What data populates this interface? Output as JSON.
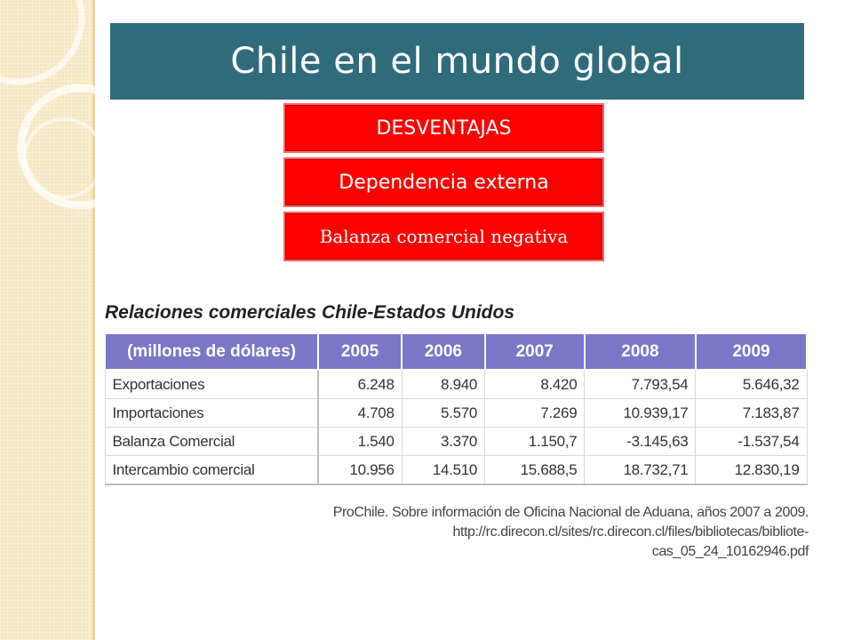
{
  "slide": {
    "title": "Chile en el mundo global",
    "boxes": [
      "DESVENTAJAS",
      "Dependencia externa",
      "Balanza comercial negativa"
    ]
  },
  "table": {
    "title": "Relaciones comerciales Chile-Estados Unidos",
    "headers": [
      "(millones de dólares)",
      "2005",
      "2006",
      "2007",
      "2008",
      "2009"
    ],
    "rows": [
      [
        "Exportaciones",
        "6.248",
        "8.940",
        "8.420",
        "7.793,54",
        "5.646,32"
      ],
      [
        "Importaciones",
        "4.708",
        "5.570",
        "7.269",
        "10.939,17",
        "7.183,87"
      ],
      [
        "Balanza Comercial",
        "1.540",
        "3.370",
        "1.150,7",
        "-3.145,63",
        "-1.537,54"
      ],
      [
        "Intercambio comercial",
        "10.956",
        "14.510",
        "15.688,5",
        "18.732,71",
        "12.830,19"
      ]
    ]
  },
  "source": {
    "line1": "ProChile. Sobre información de Oficina Nacional de Aduana, años 2007 a 2009.",
    "line2": "http://rc.direcon.cl/sites/rc.direcon.cl/files/bibliotecas/bibliote-",
    "line3": "cas_05_24_10162946.pdf"
  },
  "colors": {
    "title_bar": "#2f6b7b",
    "red_boxes": "#ff0000",
    "table_header": "#7b76c8",
    "side_strip": "#f6e6c2"
  }
}
